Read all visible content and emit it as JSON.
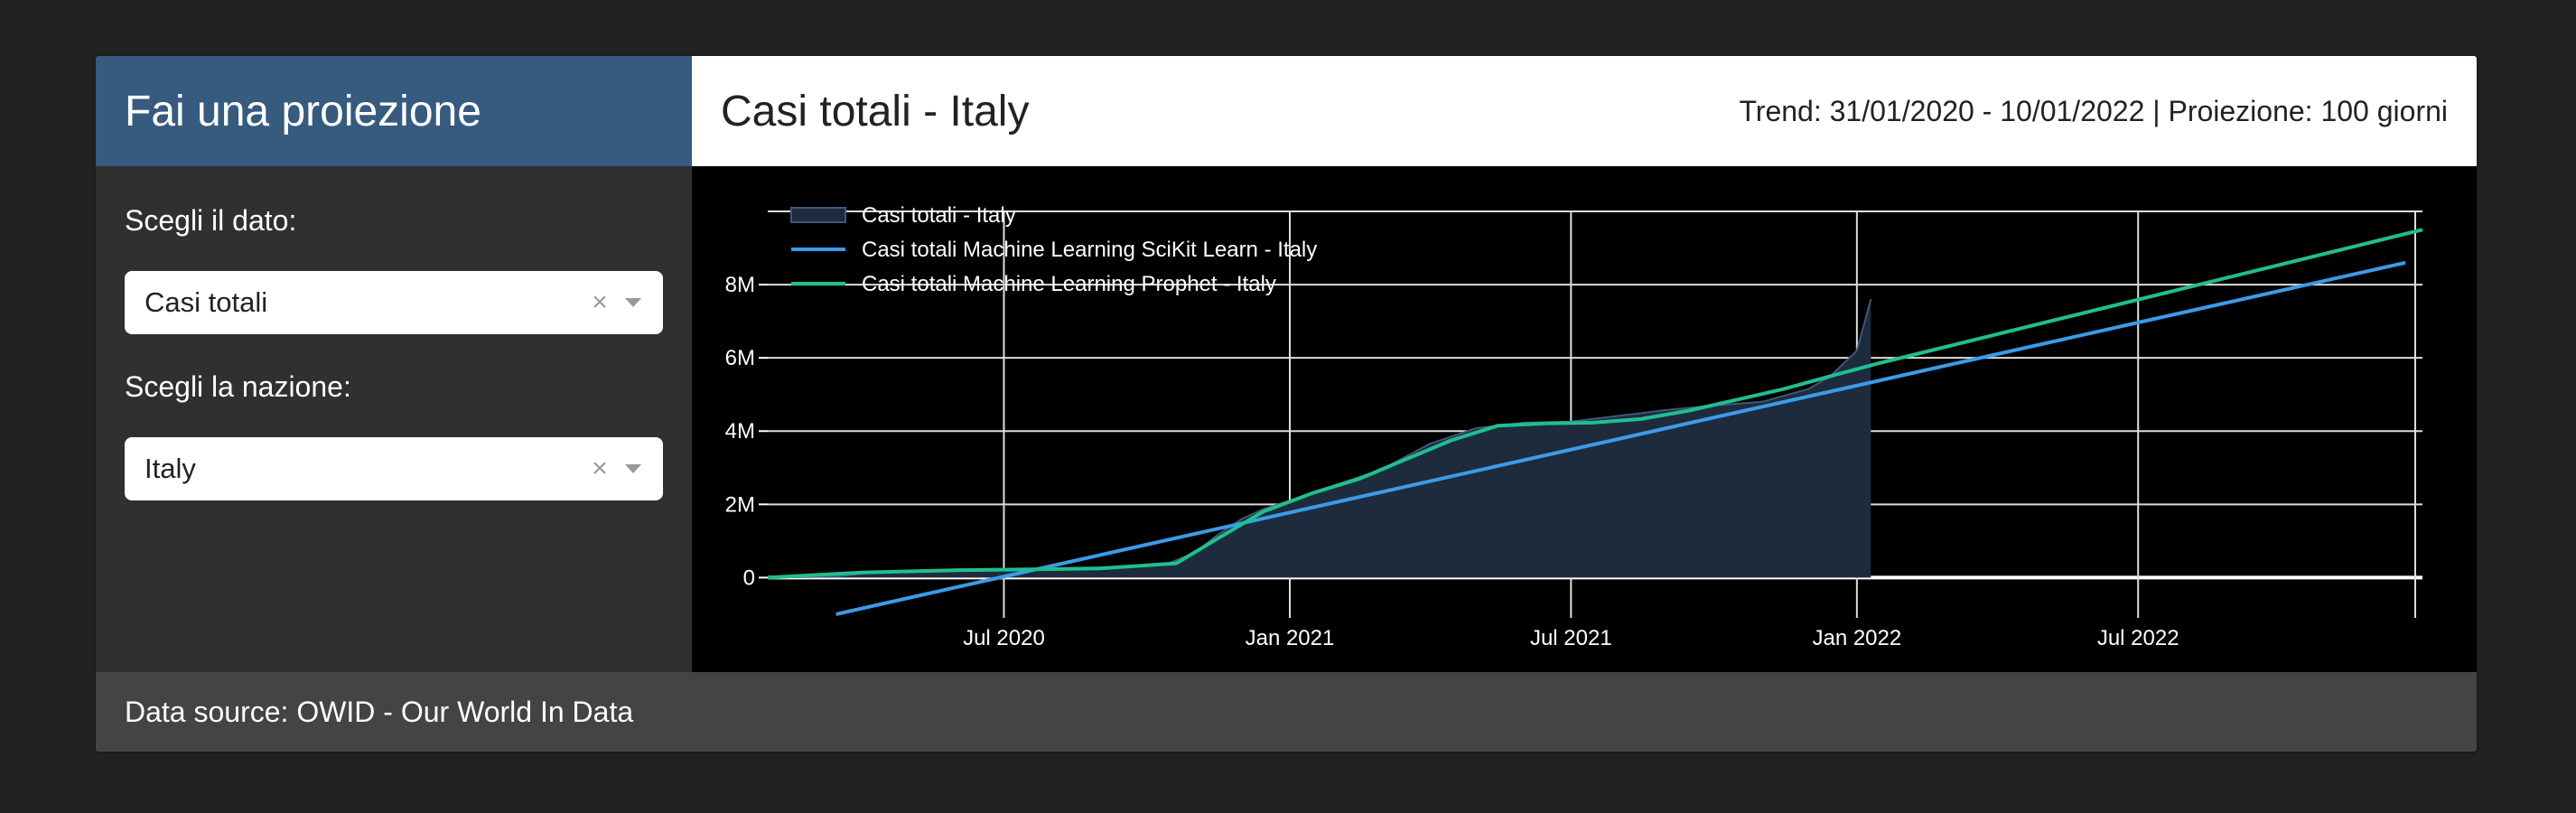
{
  "sidebar": {
    "title": "Fai una proiezione",
    "data_label": "Scegli il dato:",
    "data_value": "Casi totali",
    "country_label": "Scegli la nazione:",
    "country_value": "Italy",
    "clear_glyph": "×"
  },
  "main": {
    "title": "Casi totali - Italy",
    "trend_info": "Trend: 31/01/2020 - 10/01/2022 | Proiezione: 100 giorni"
  },
  "footer": {
    "source": "Data source: OWID - Our World In Data"
  },
  "colors": {
    "sidebar_header": "#375a7f",
    "area_fill": "#1d2b3d",
    "area_line": "#3e5878",
    "sklearn": "#3b9be8",
    "prophet": "#1fbf8f"
  },
  "chart_data": {
    "type": "line",
    "title": "",
    "xlabel": "",
    "ylabel": "",
    "x_tick_labels": [
      "Jul 2020",
      "Jan 2021",
      "Jul 2021",
      "Jan 2022",
      "Jul 2022"
    ],
    "x_tick_dates": [
      "2020-07-01",
      "2021-01-01",
      "2021-07-01",
      "2022-01-01",
      "2022-07-01"
    ],
    "x_range": [
      "2020-01-31",
      "2022-12-31"
    ],
    "y_tick_labels": [
      "0",
      "2M",
      "4M",
      "6M",
      "8M"
    ],
    "y_tick_values": [
      0,
      2000000,
      4000000,
      6000000,
      8000000
    ],
    "ylim": [
      -1100000,
      10000000
    ],
    "grid": true,
    "legend_position": "top-left",
    "series": [
      {
        "name": "Casi totali - Italy",
        "style": "area",
        "x": [
          "2020-01-31",
          "2020-03-15",
          "2020-04-15",
          "2020-06-01",
          "2020-08-01",
          "2020-09-15",
          "2020-10-15",
          "2020-11-01",
          "2020-11-15",
          "2020-12-01",
          "2020-12-15",
          "2021-01-01",
          "2021-02-01",
          "2021-03-01",
          "2021-04-01",
          "2021-05-01",
          "2021-06-01",
          "2021-07-01",
          "2021-08-01",
          "2021-09-01",
          "2021-10-01",
          "2021-11-01",
          "2021-12-01",
          "2021-12-15",
          "2022-01-01",
          "2022-01-10"
        ],
        "y": [
          0,
          30000,
          170000,
          230000,
          250000,
          290000,
          390000,
          680000,
          1150000,
          1600000,
          1870000,
          2100000,
          2550000,
          2950000,
          3650000,
          4080000,
          4230000,
          4260000,
          4420000,
          4580000,
          4700000,
          4800000,
          5150000,
          5500000,
          6200000,
          7600000
        ]
      },
      {
        "name": "Casi totali Machine Learning SciKit Learn - Italy",
        "style": "line",
        "x": [
          "2020-03-15",
          "2022-12-20"
        ],
        "y": [
          -1000000,
          8600000
        ]
      },
      {
        "name": "Casi totali Machine Learning Prophet - Italy",
        "style": "line",
        "x": [
          "2020-01-31",
          "2020-04-01",
          "2020-06-01",
          "2020-09-01",
          "2020-10-20",
          "2020-11-15",
          "2020-12-15",
          "2021-01-15",
          "2021-02-15",
          "2021-03-15",
          "2021-04-15",
          "2021-05-15",
          "2021-06-15",
          "2021-07-15",
          "2021-08-15",
          "2021-09-15",
          "2021-10-15",
          "2021-11-15",
          "2021-12-15",
          "2022-01-15",
          "2022-12-31"
        ],
        "y": [
          0,
          140000,
          200000,
          250000,
          390000,
          1050000,
          1800000,
          2300000,
          2700000,
          3200000,
          3750000,
          4150000,
          4210000,
          4230000,
          4330000,
          4560000,
          4850000,
          5150000,
          5500000,
          5850000,
          9500000
        ]
      }
    ]
  }
}
